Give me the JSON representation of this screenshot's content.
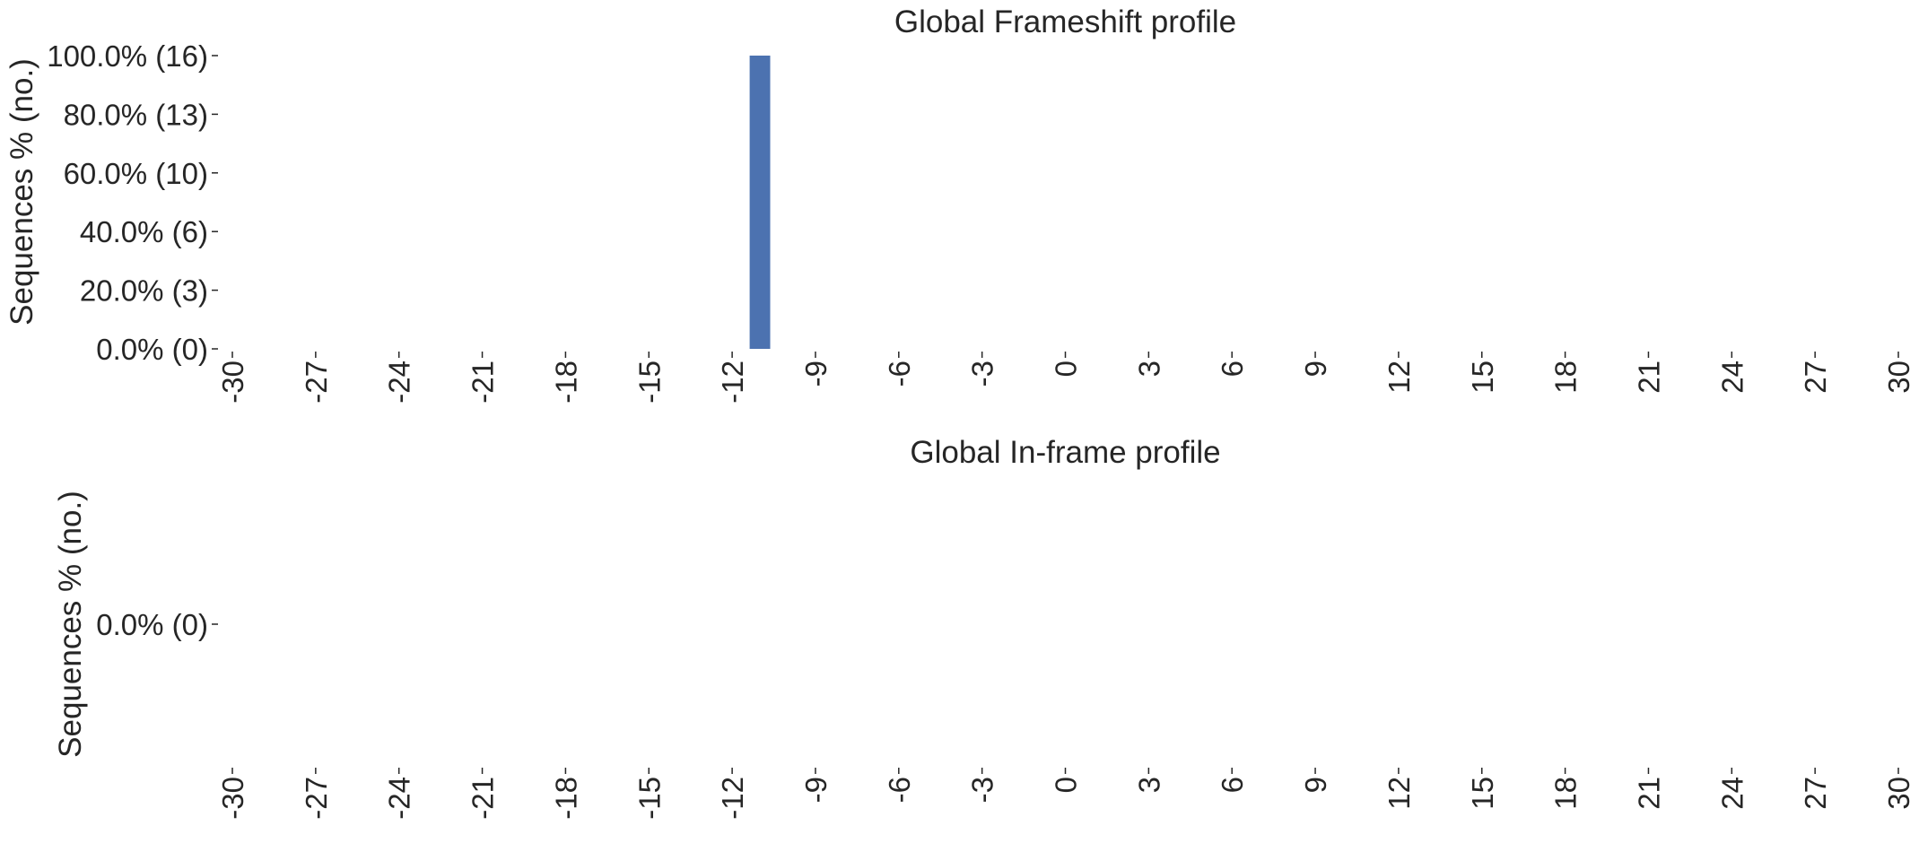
{
  "chart_data": [
    {
      "type": "bar",
      "title": "Global Frameshift profile",
      "ylabel": "Sequences % (no.)",
      "xlabel": "",
      "xlim": [
        -30,
        30
      ],
      "x_ticks": [
        -30,
        -27,
        -24,
        -21,
        -18,
        -15,
        -12,
        -9,
        -6,
        -3,
        0,
        3,
        6,
        9,
        12,
        15,
        18,
        21,
        24,
        27,
        30
      ],
      "ylim": [
        0,
        100
      ],
      "y_ticks": [
        {
          "value": 0,
          "label": "0.0% (0)"
        },
        {
          "value": 20,
          "label": "20.0% (3)"
        },
        {
          "value": 40,
          "label": "40.0% (6)"
        },
        {
          "value": 60,
          "label": "60.0% (10)"
        },
        {
          "value": 80,
          "label": "80.0% (13)"
        },
        {
          "value": 100,
          "label": "100.0% (16)"
        }
      ],
      "x": [
        -11
      ],
      "values": [
        100
      ],
      "counts": [
        16
      ],
      "bar_color": "#4c72b0",
      "grid": false,
      "legend": "none"
    },
    {
      "type": "bar",
      "title": "Global In-frame profile",
      "ylabel": "Sequences % (no.)",
      "xlabel": "",
      "xlim": [
        -30,
        30
      ],
      "x_ticks": [
        -30,
        -27,
        -24,
        -21,
        -18,
        -15,
        -12,
        -9,
        -6,
        -3,
        0,
        3,
        6,
        9,
        12,
        15,
        18,
        21,
        24,
        27,
        30
      ],
      "ylim": [
        -0.05,
        0.05
      ],
      "y_ticks": [
        {
          "value": 0,
          "label": "0.0% (0)"
        }
      ],
      "x": [],
      "values": [],
      "counts": [],
      "bar_color": "#4c72b0",
      "grid": false,
      "legend": "none"
    }
  ]
}
